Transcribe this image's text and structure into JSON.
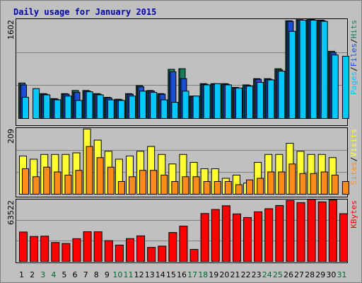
{
  "chart_data": {
    "type": "bar",
    "title": "Daily usage for January 2015",
    "categories": [
      "1",
      "2",
      "3",
      "4",
      "5",
      "6",
      "7",
      "8",
      "9",
      "10",
      "11",
      "12",
      "13",
      "14",
      "15",
      "16",
      "17",
      "18",
      "19",
      "20",
      "21",
      "22",
      "23",
      "24",
      "25",
      "26",
      "27",
      "28",
      "29",
      "30",
      "31"
    ],
    "weekend_days": [
      "3",
      "4",
      "10",
      "11",
      "17",
      "18",
      "24",
      "25",
      "31"
    ],
    "grid": true,
    "colors": {
      "background": "#c0c0c0",
      "title": "#0000aa",
      "axis_text": "#000000",
      "weekend_text": "#006633",
      "hits": "#1a7e5e",
      "files": "#1a4fd6",
      "pages": "#00c8ff",
      "visits": "#ffff33",
      "sites": "#ff8c1a",
      "kbytes": "#ff0000"
    },
    "panels": [
      {
        "ymax_label": "1602",
        "ylim": [
          0,
          1602
        ],
        "legend": [
          {
            "name": "Pages",
            "color": "#00c8ff"
          },
          {
            "name": "/",
            "color": "#000000"
          },
          {
            "name": "Files",
            "color": "#1a4fd6"
          },
          {
            "name": "/",
            "color": "#000000"
          },
          {
            "name": "Hits",
            "color": "#1a7e5e"
          }
        ],
        "series": [
          {
            "name": "Hits",
            "values": [
              570,
              0,
              400,
              320,
              400,
              450,
              450,
              400,
              340,
              310,
              400,
              530,
              450,
              400,
              790,
              800,
              360,
              560,
              560,
              560,
              500,
              540,
              640,
              640,
              800,
              1570,
              1600,
              1600,
              1580,
              1080,
              0
            ]
          },
          {
            "name": "Files",
            "values": [
              540,
              0,
              390,
              310,
              390,
              420,
              440,
              390,
              330,
              300,
              390,
              510,
              440,
              390,
              750,
              640,
              350,
              550,
              550,
              550,
              490,
              530,
              630,
              630,
              780,
              1560,
              1580,
              1590,
              1570,
              1060,
              0
            ]
          },
          {
            "name": "Pages",
            "values": [
              340,
              480,
              380,
              300,
              360,
              290,
              430,
              380,
              300,
              290,
              360,
              440,
              420,
              300,
              260,
              440,
              360,
              540,
              560,
              540,
              490,
              520,
              580,
              620,
              760,
              1400,
              1580,
              1580,
              1560,
              1020,
              1000
            ]
          }
        ]
      },
      {
        "ymax_label": "209",
        "ylim": [
          0,
          209
        ],
        "legend": [
          {
            "name": "Sites",
            "color": "#ff8c1a"
          },
          {
            "name": "/",
            "color": "#000000"
          },
          {
            "name": "Visits",
            "color": "#ffff33"
          }
        ],
        "series": [
          {
            "name": "Visits",
            "values": [
              120,
              110,
              125,
              125,
              125,
              130,
              205,
              170,
              135,
              110,
              120,
              135,
              150,
              125,
              95,
              125,
              100,
              80,
              80,
              50,
              60,
              35,
              100,
              125,
              125,
              160,
              135,
              125,
              125,
              115,
              0
            ]
          },
          {
            "name": "Sites",
            "values": [
              80,
              55,
              85,
              70,
              60,
              75,
              150,
              115,
              85,
              40,
              55,
              75,
              75,
              60,
              40,
              55,
              55,
              40,
              40,
              40,
              30,
              45,
              50,
              70,
              70,
              95,
              65,
              65,
              70,
              60,
              40
            ]
          }
        ]
      },
      {
        "ymax_label": "63522",
        "ylim": [
          0,
          63522
        ],
        "legend": [
          {
            "name": "KBytes",
            "color": "#ff0000"
          }
        ],
        "series": [
          {
            "name": "KBytes",
            "values": [
              30000,
              25500,
              25800,
              19300,
              18300,
              23200,
              30300,
              30200,
              21200,
              16700,
              23300,
              26100,
              14300,
              15600,
              29500,
              36000,
              12300,
              48900,
              53000,
              56800,
              48500,
              44800,
              50600,
              53800,
              57100,
              62200,
              60000,
              63300,
              60800,
              62700,
              48700
            ]
          }
        ]
      }
    ]
  }
}
